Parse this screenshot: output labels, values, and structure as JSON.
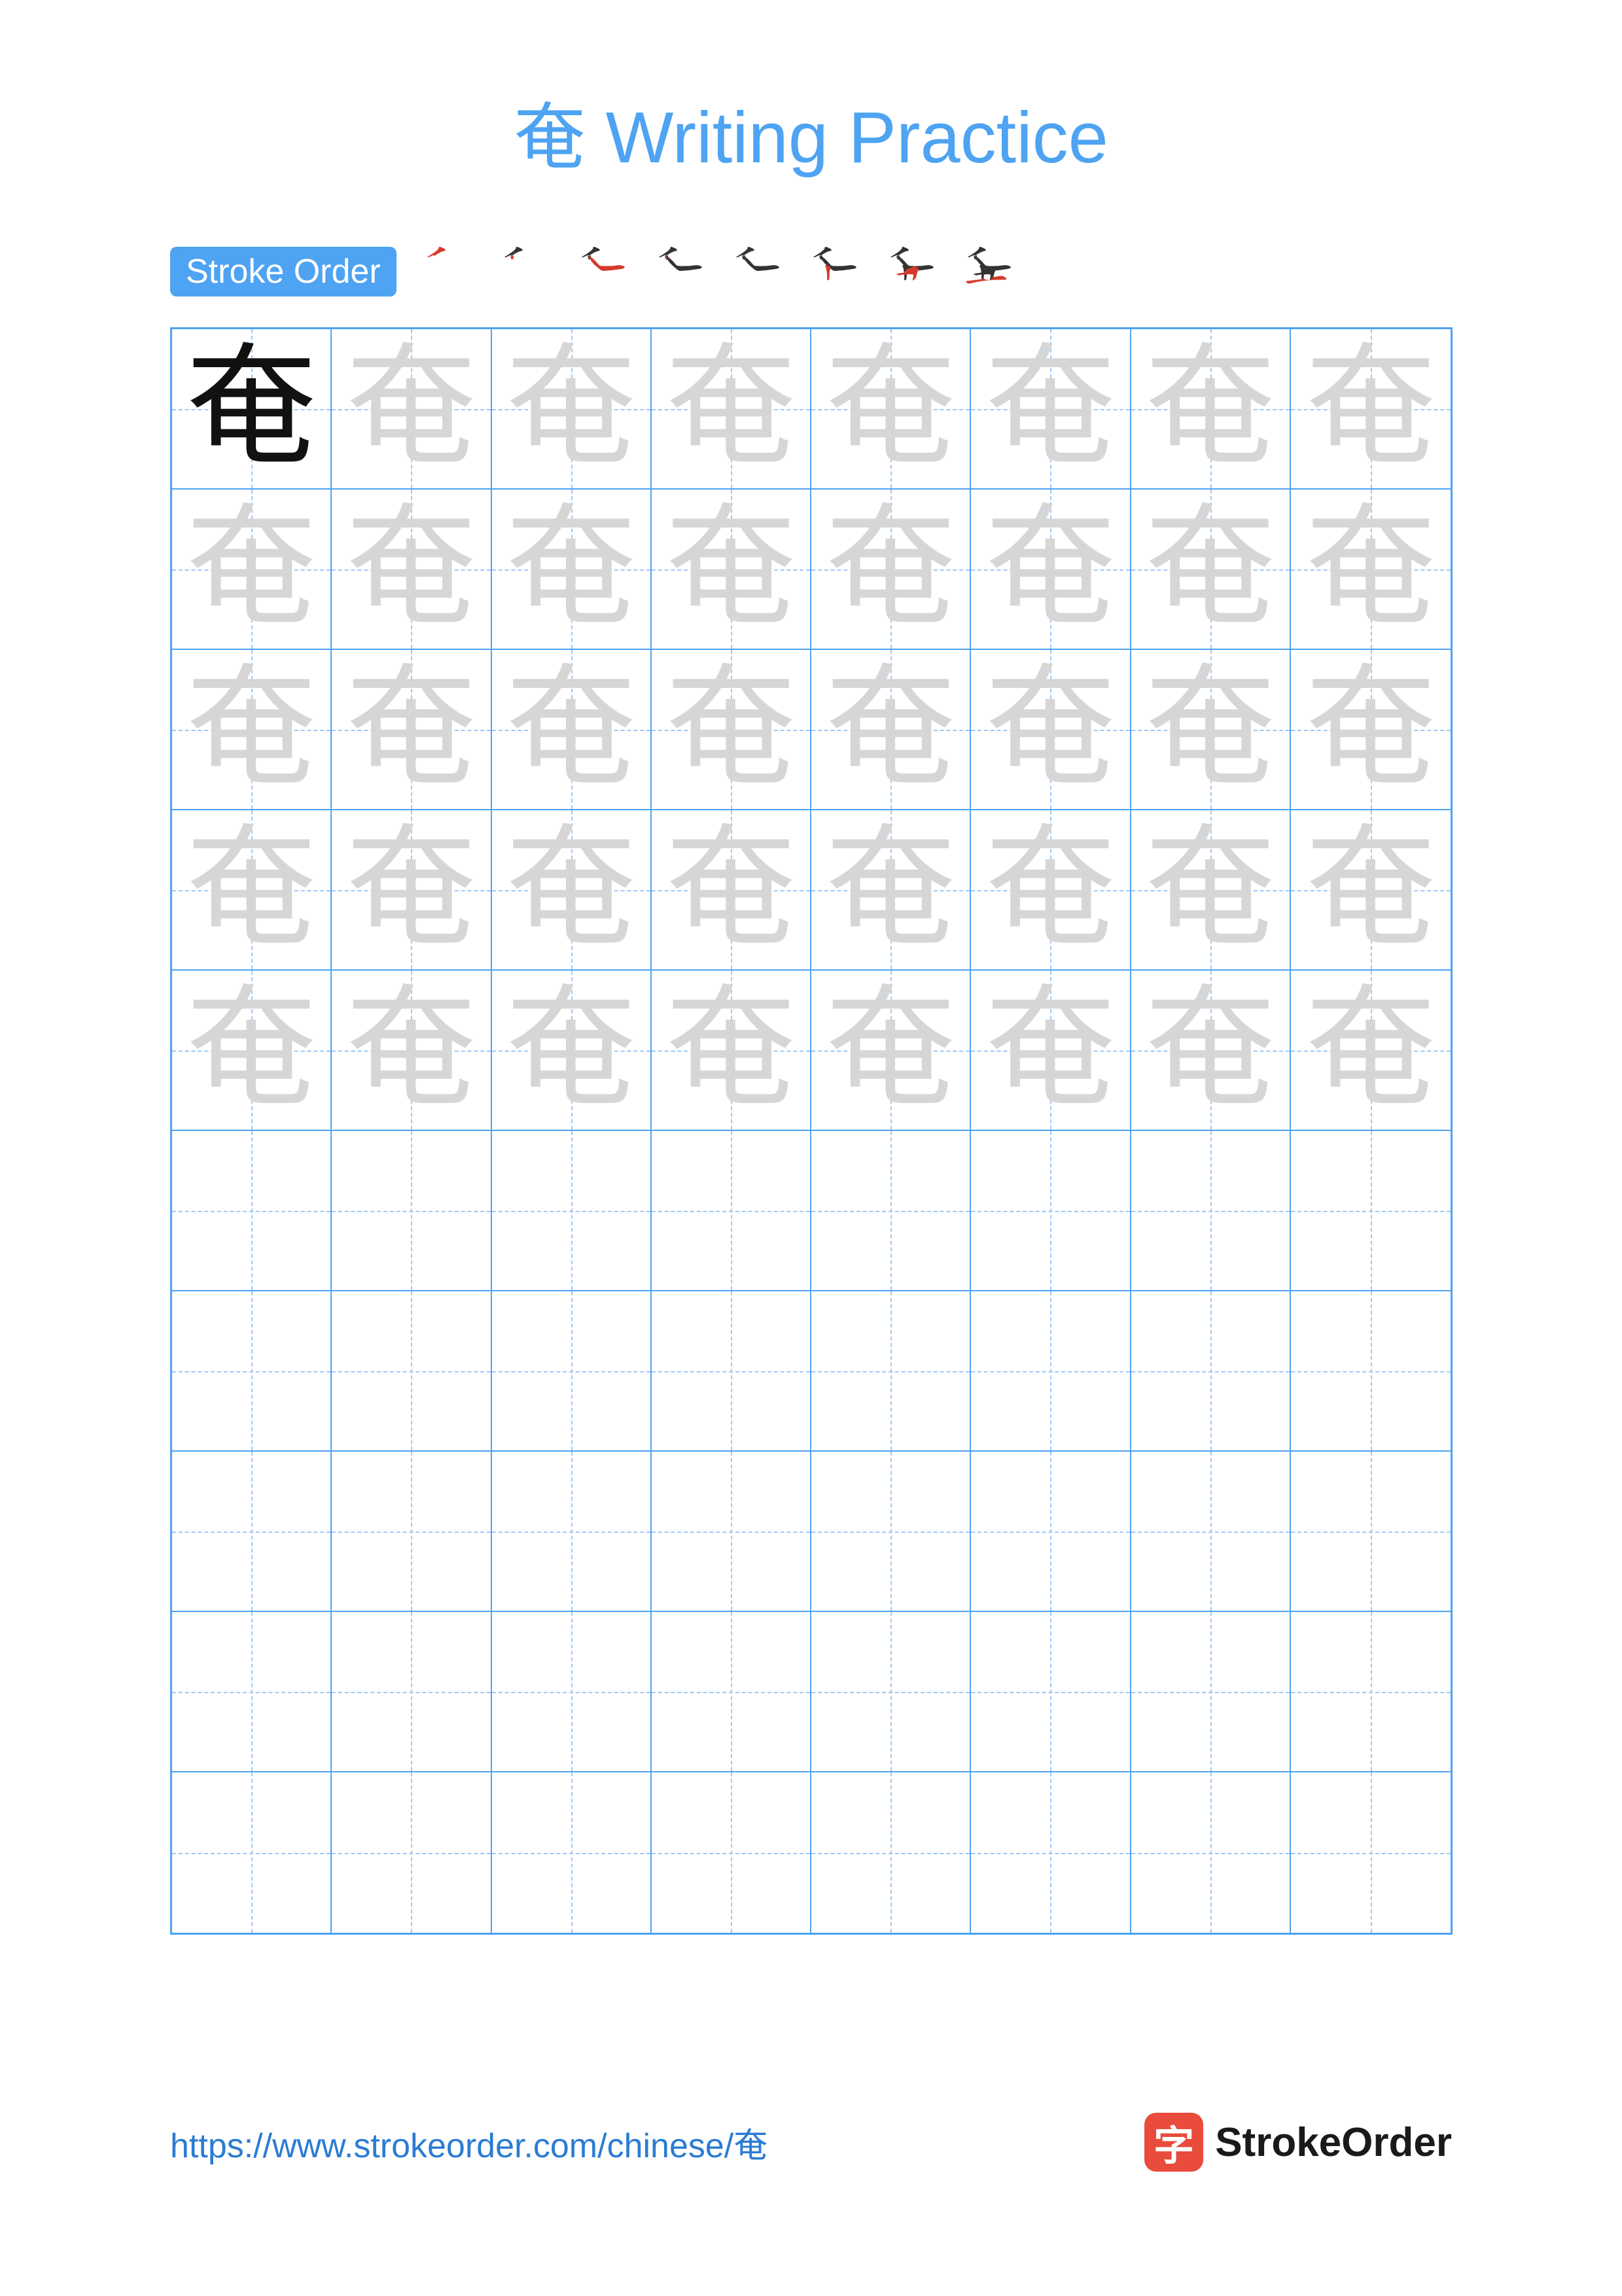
{
  "colors": {
    "title": "#4ea3f2",
    "label_bg": "#4ea3f2",
    "grid_border": "#4ea3f2",
    "grid_guide": "#9ec9f5",
    "char_solid": "#111111",
    "char_trace": "#d6d6d6",
    "stroke_done": "#333333",
    "stroke_current": "#d43b2a",
    "url": "#2b7cd3",
    "logo_bg": "#e94b3c",
    "logo_text": "#1a1a1a"
  },
  "title": "奄 Writing Practice",
  "stroke_order_label": "Stroke Order",
  "character": "奄",
  "stroke_count": 8,
  "grid": {
    "rows": 10,
    "cols": 8,
    "trace_rows": 5,
    "solid_cell": [
      0,
      0
    ]
  },
  "footer": {
    "url": "https://www.strokeorder.com/chinese/奄",
    "logo_char": "字",
    "logo_text": "StrokeOrder"
  },
  "strokes": [
    "M 310 656 Q 418 735 484 747 Q 503 748 508 757 Q 512 767 499 780 Q 477 796 431 813 Q 415 820 401 819 Q 394 815 393 803 Q 393 760 200 647 Q 194 637 201 635 Q 216 635 295 673 C 310 680 310 680 310 656",
    "M 295 673 Q 303 617 316 604 Q 327 592 341 605 Q 349 615 353 642 C 362 702 350 652 310 656 C 290 658 292 693 295 673",
    "M 354 580 Q 375 550 405 519 Q 442 481 519 420 Q 549 397 584 401 Q 722 407 860 430 Q 907 437 920 443 Q 946 453 941 467 Q 938 479 907 491 Q 871 505 825 499 Q 694 478 530 488 Q 503 492 494 504 Q 403 612 356 640 L 353 642 Q 330 655 319 650 C 310 652 310 652 310 656",
    "M 320 650 Q 310 652 308 647 Q 302 640 310 629 Q 331 608 353 579 L 354 578 L 354 580",
    "M 353 579 Q 350 575 349 569 C 346 555 346 555 354 578",
    "M 475 373 Q 478 389 493 452 Q 494 465 482 476 Q 451 497 427 502 Q 411 506 404 498 Q 396 491 404 476 Q 421 452 429 371 L 432 340 Q 436 285 432 256 C 429 226 466 235 471 265 Q 477 302 475 337 L 475 373",
    "M 640 296 Q 660 386 675 408 Q 697 438 674 451 Q 653 460 626 478 Q 607 488 589 476 Q 556 452 475 431 L 429 371 Q 373 362 314 353 Q 298 352 300 342 Q 303 335 321 329 Q 346 319 380 331 Q 405 337 432 340 L 475 337 Q 553 349 585 337 Q 594 333 592 313 Q 585 275 577 244 C 570 215 633 267 640 296",
    "M 432 256 Q 315 241 175 225 Q 153 224 168 205 Q 183 189 201 183 Q 223 177 240 182 Q 478 248 838 247 L 840 247 Q 861 247 866 256 Q 872 268 855 282 Q 797 325 735 309 Q 692 301 640 296 L 577 244 Q 525 237 471 265 L 432 256 Z"
  ]
}
